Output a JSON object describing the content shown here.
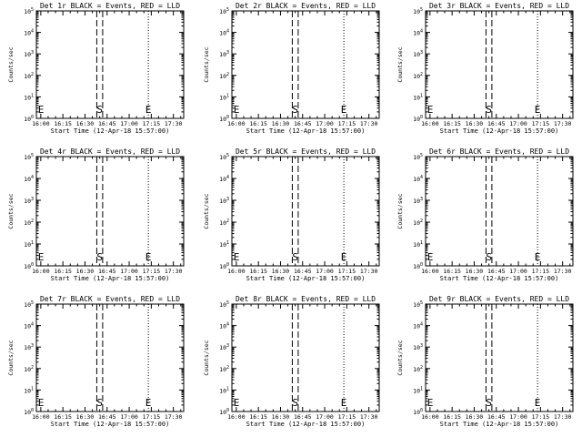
{
  "chart_data": [
    {
      "type": "line",
      "title": "Det 1r BLACK = Events, RED = LLD",
      "xlabel": "Start Time (12-Apr-18 15:57:00)",
      "ylabel": "Counts/sec",
      "x_ticks": [
        "16:00",
        "16:15",
        "16:30",
        "16:45",
        "17:00",
        "17:15",
        "17:30"
      ],
      "x_range": [
        "15:57",
        "17:37"
      ],
      "y_scale": "log",
      "y_ticks": [
        "10^0",
        "10^1",
        "10^2",
        "10^3",
        "10^4",
        "10^5"
      ],
      "ylim": [
        1,
        100000
      ],
      "vlines_dotted": [
        "15:57",
        "17:13",
        "17:37"
      ],
      "vlines_dashed": [
        "16:38",
        "16:42"
      ],
      "markers": [
        {
          "label": "E",
          "x": "15:57"
        },
        {
          "label": "S",
          "x": "16:40"
        },
        {
          "label": "E",
          "x": "17:13"
        }
      ],
      "series": []
    },
    {
      "type": "line",
      "title": "Det 2r BLACK = Events, RED = LLD",
      "xlabel": "Start Time (12-Apr-18 15:57:00)",
      "ylabel": "Counts/sec",
      "x_ticks": [
        "16:00",
        "16:15",
        "16:30",
        "16:45",
        "17:00",
        "17:15",
        "17:30"
      ],
      "x_range": [
        "15:57",
        "17:37"
      ],
      "y_scale": "log",
      "y_ticks": [
        "10^0",
        "10^1",
        "10^2",
        "10^3",
        "10^4",
        "10^5"
      ],
      "ylim": [
        1,
        100000
      ],
      "vlines_dotted": [
        "15:57",
        "17:13",
        "17:37"
      ],
      "vlines_dashed": [
        "16:38",
        "16:42"
      ],
      "markers": [
        {
          "label": "E",
          "x": "15:57"
        },
        {
          "label": "S",
          "x": "16:40"
        },
        {
          "label": "E",
          "x": "17:13"
        }
      ],
      "series": []
    },
    {
      "type": "line",
      "title": "Det 3r BLACK = Events, RED = LLD",
      "xlabel": "Start Time (12-Apr-18 15:57:00)",
      "ylabel": "Counts/sec",
      "x_ticks": [
        "16:00",
        "16:15",
        "16:30",
        "16:45",
        "17:00",
        "17:15",
        "17:30"
      ],
      "x_range": [
        "15:57",
        "17:37"
      ],
      "y_scale": "log",
      "y_ticks": [
        "10^0",
        "10^1",
        "10^2",
        "10^3",
        "10^4",
        "10^5"
      ],
      "ylim": [
        1,
        100000
      ],
      "vlines_dotted": [
        "15:57",
        "17:13",
        "17:37"
      ],
      "vlines_dashed": [
        "16:38",
        "16:42"
      ],
      "markers": [
        {
          "label": "E",
          "x": "15:57"
        },
        {
          "label": "S",
          "x": "16:40"
        },
        {
          "label": "E",
          "x": "17:13"
        }
      ],
      "series": []
    },
    {
      "type": "line",
      "title": "Det 4r BLACK = Events, RED = LLD",
      "xlabel": "Start Time (12-Apr-18 15:57:00)",
      "ylabel": "Counts/sec",
      "x_ticks": [
        "16:00",
        "16:15",
        "16:30",
        "16:45",
        "17:00",
        "17:15",
        "17:30"
      ],
      "x_range": [
        "15:57",
        "17:37"
      ],
      "y_scale": "log",
      "y_ticks": [
        "10^0",
        "10^1",
        "10^2",
        "10^3",
        "10^4",
        "10^5"
      ],
      "ylim": [
        1,
        100000
      ],
      "vlines_dotted": [
        "15:57",
        "17:13",
        "17:37"
      ],
      "vlines_dashed": [
        "16:38",
        "16:42"
      ],
      "markers": [
        {
          "label": "E",
          "x": "15:57"
        },
        {
          "label": "S",
          "x": "16:40"
        },
        {
          "label": "E",
          "x": "17:13"
        }
      ],
      "series": []
    },
    {
      "type": "line",
      "title": "Det 5r BLACK = Events, RED = LLD",
      "xlabel": "Start Time (12-Apr-18 15:57:00)",
      "ylabel": "Counts/sec",
      "x_ticks": [
        "16:00",
        "16:15",
        "16:30",
        "16:45",
        "17:00",
        "17:15",
        "17:30"
      ],
      "x_range": [
        "15:57",
        "17:37"
      ],
      "y_scale": "log",
      "y_ticks": [
        "10^0",
        "10^1",
        "10^2",
        "10^3",
        "10^4",
        "10^5"
      ],
      "ylim": [
        1,
        100000
      ],
      "vlines_dotted": [
        "15:57",
        "17:13",
        "17:37"
      ],
      "vlines_dashed": [
        "16:38",
        "16:42"
      ],
      "markers": [
        {
          "label": "E",
          "x": "15:57"
        },
        {
          "label": "S",
          "x": "16:40"
        },
        {
          "label": "E",
          "x": "17:13"
        }
      ],
      "series": []
    },
    {
      "type": "line",
      "title": "Det 6r BLACK = Events, RED = LLD",
      "xlabel": "Start Time (12-Apr-18 15:57:00)",
      "ylabel": "Counts/sec",
      "x_ticks": [
        "16:00",
        "16:15",
        "16:30",
        "16:45",
        "17:00",
        "17:15",
        "17:30"
      ],
      "x_range": [
        "15:57",
        "17:37"
      ],
      "y_scale": "log",
      "y_ticks": [
        "10^0",
        "10^1",
        "10^2",
        "10^3",
        "10^4",
        "10^5"
      ],
      "ylim": [
        1,
        100000
      ],
      "vlines_dotted": [
        "15:57",
        "17:13",
        "17:37"
      ],
      "vlines_dashed": [
        "16:38",
        "16:42"
      ],
      "markers": [
        {
          "label": "E",
          "x": "15:57"
        },
        {
          "label": "S",
          "x": "16:40"
        },
        {
          "label": "E",
          "x": "17:13"
        }
      ],
      "series": []
    },
    {
      "type": "line",
      "title": "Det 7r BLACK = Events, RED = LLD",
      "xlabel": "Start Time (12-Apr-18 15:57:00)",
      "ylabel": "Counts/sec",
      "x_ticks": [
        "16:00",
        "16:15",
        "16:30",
        "16:45",
        "17:00",
        "17:15",
        "17:30"
      ],
      "x_range": [
        "15:57",
        "17:37"
      ],
      "y_scale": "log",
      "y_ticks": [
        "10^0",
        "10^1",
        "10^2",
        "10^3",
        "10^4",
        "10^5"
      ],
      "ylim": [
        1,
        100000
      ],
      "vlines_dotted": [
        "15:57",
        "17:13",
        "17:37"
      ],
      "vlines_dashed": [
        "16:38",
        "16:42"
      ],
      "markers": [
        {
          "label": "E",
          "x": "15:57"
        },
        {
          "label": "S",
          "x": "16:40"
        },
        {
          "label": "E",
          "x": "17:13"
        }
      ],
      "series": []
    },
    {
      "type": "line",
      "title": "Det 8r BLACK = Events, RED = LLD",
      "xlabel": "Start Time (12-Apr-18 15:57:00)",
      "ylabel": "Counts/sec",
      "x_ticks": [
        "16:00",
        "16:15",
        "16:30",
        "16:45",
        "17:00",
        "17:15",
        "17:30"
      ],
      "x_range": [
        "15:57",
        "17:37"
      ],
      "y_scale": "log",
      "y_ticks": [
        "10^0",
        "10^1",
        "10^2",
        "10^3",
        "10^4",
        "10^5"
      ],
      "ylim": [
        1,
        100000
      ],
      "vlines_dotted": [
        "15:57",
        "17:13",
        "17:37"
      ],
      "vlines_dashed": [
        "16:38",
        "16:42"
      ],
      "markers": [
        {
          "label": "E",
          "x": "15:57"
        },
        {
          "label": "S",
          "x": "16:40"
        },
        {
          "label": "E",
          "x": "17:13"
        }
      ],
      "series": []
    },
    {
      "type": "line",
      "title": "Det 9r BLACK = Events, RED = LLD",
      "xlabel": "Start Time (12-Apr-18 15:57:00)",
      "ylabel": "Counts/sec",
      "x_ticks": [
        "16:00",
        "16:15",
        "16:30",
        "16:45",
        "17:00",
        "17:15",
        "17:30"
      ],
      "x_range": [
        "15:57",
        "17:37"
      ],
      "y_scale": "log",
      "y_ticks": [
        "10^0",
        "10^1",
        "10^2",
        "10^3",
        "10^4",
        "10^5"
      ],
      "ylim": [
        1,
        100000
      ],
      "vlines_dotted": [
        "15:57",
        "17:13",
        "17:37"
      ],
      "vlines_dashed": [
        "16:38",
        "16:42"
      ],
      "markers": [
        {
          "label": "E",
          "x": "15:57"
        },
        {
          "label": "S",
          "x": "16:40"
        },
        {
          "label": "E",
          "x": "17:13"
        }
      ],
      "series": []
    }
  ],
  "colors": {
    "background": "#ffffff",
    "foreground": "#000000"
  }
}
